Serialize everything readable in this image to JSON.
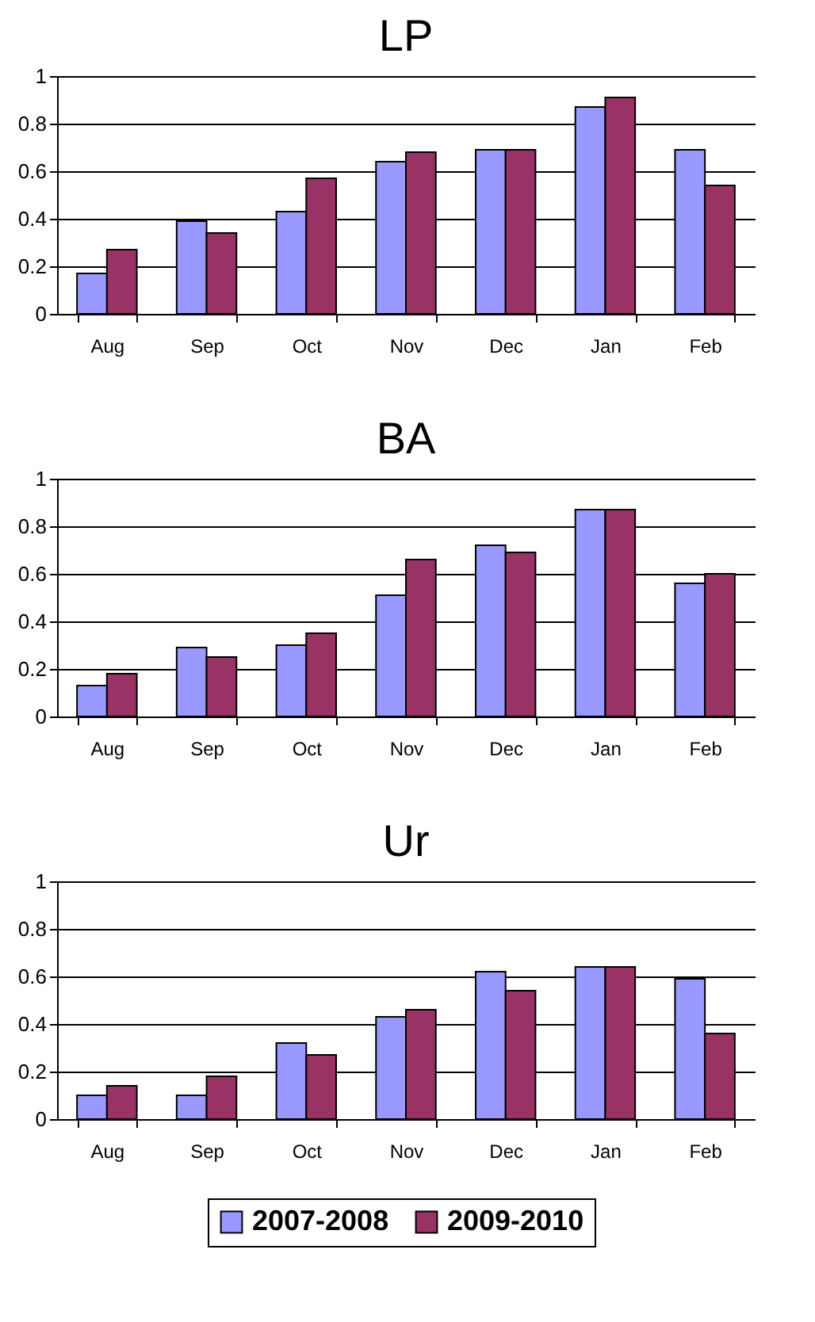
{
  "chart_data": [
    {
      "type": "bar",
      "title": "LP",
      "categories": [
        "Aug",
        "Sep",
        "Oct",
        "Nov",
        "Dec",
        "Jan",
        "Feb"
      ],
      "ylim": [
        0,
        1
      ],
      "yticks": [
        0,
        0.2,
        0.4,
        0.6,
        0.8,
        1
      ],
      "grid": "y",
      "series": [
        {
          "color": "#9999ff",
          "values": [
            0.17,
            0.39,
            0.43,
            0.64,
            0.69,
            0.87,
            0.69
          ]
        },
        {
          "color": "#993366",
          "values": [
            0.27,
            0.34,
            0.57,
            0.68,
            0.69,
            0.91,
            0.54
          ]
        }
      ]
    },
    {
      "type": "bar",
      "title": "BA",
      "categories": [
        "Aug",
        "Sep",
        "Oct",
        "Nov",
        "Dec",
        "Jan",
        "Feb"
      ],
      "ylim": [
        0,
        1
      ],
      "yticks": [
        0,
        0.2,
        0.4,
        0.6,
        0.8,
        1
      ],
      "grid": "y",
      "series": [
        {
          "color": "#9999ff",
          "values": [
            0.13,
            0.29,
            0.3,
            0.51,
            0.72,
            0.87,
            0.56
          ]
        },
        {
          "color": "#993366",
          "values": [
            0.18,
            0.25,
            0.35,
            0.66,
            0.69,
            0.87,
            0.6
          ]
        }
      ]
    },
    {
      "type": "bar",
      "title": "Ur",
      "categories": [
        "Aug",
        "Sep",
        "Oct",
        "Nov",
        "Dec",
        "Jan",
        "Feb"
      ],
      "ylim": [
        0,
        1
      ],
      "yticks": [
        0,
        0.2,
        0.4,
        0.6,
        0.8,
        1
      ],
      "grid": "y",
      "legend": "bottom",
      "series": [
        {
          "name": "2007-2008",
          "color": "#9999ff",
          "values": [
            0.1,
            0.1,
            0.32,
            0.43,
            0.62,
            0.64,
            0.59
          ]
        },
        {
          "name": "2009-2010",
          "color": "#993366",
          "values": [
            0.14,
            0.18,
            0.27,
            0.46,
            0.54,
            0.64,
            0.36
          ]
        }
      ]
    }
  ]
}
